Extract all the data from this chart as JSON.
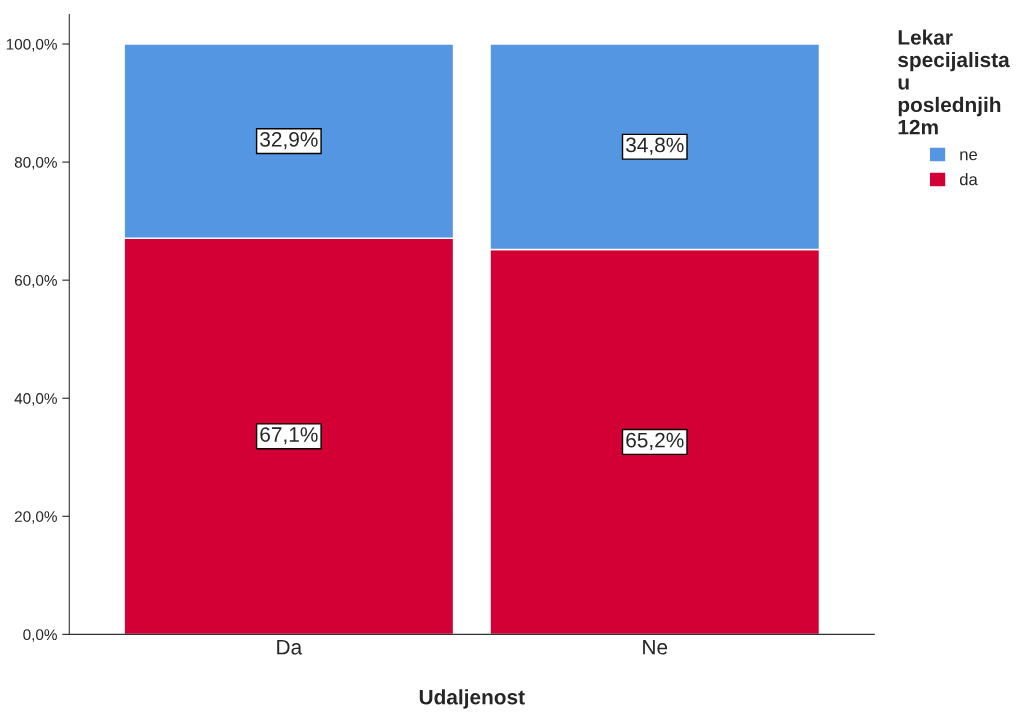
{
  "chart_data": {
    "type": "bar",
    "stacked": true,
    "categories": [
      "Da",
      "Ne"
    ],
    "xlabel": "Udaljenost",
    "legend_title": "Lekar specijalista u poslednjih 12m",
    "legend": "top right",
    "ylim": [
      0,
      105
    ],
    "yticks": [
      {
        "value": 0,
        "label": "0,0%"
      },
      {
        "value": 20,
        "label": "20,0%"
      },
      {
        "value": 40,
        "label": "40,0%"
      },
      {
        "value": 60,
        "label": "60,0%"
      },
      {
        "value": 80,
        "label": "80,0%"
      },
      {
        "value": 100,
        "label": "100,0%"
      }
    ],
    "grid": false,
    "series": [
      {
        "name": "da",
        "color": "#d20034",
        "values": [
          67.1,
          65.2
        ],
        "value_labels": [
          "67,1%",
          "65,2%"
        ]
      },
      {
        "name": "ne",
        "color": "#5596e3",
        "values": [
          32.9,
          34.8
        ],
        "value_labels": [
          "32,9%",
          "34,8%"
        ]
      }
    ]
  }
}
